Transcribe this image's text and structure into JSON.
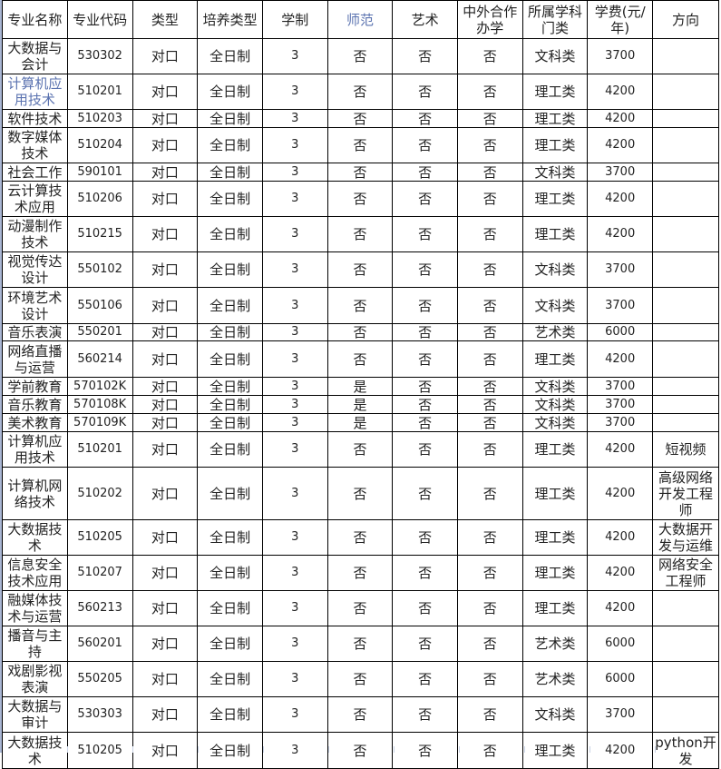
{
  "header": [
    "专业名称",
    "专业代码",
    "类型",
    "培养类型",
    "学制",
    "师范",
    "艺术",
    "中外合作办学",
    "所属学科门类",
    "学费(元/年)",
    "方向"
  ],
  "accent_color": "#5b73b0",
  "rows": [
    [
      "大数据与会计",
      "530302",
      "对口",
      "全日制",
      "3",
      "否",
      "否",
      "否",
      "文科类",
      "3700",
      ""
    ],
    [
      "计算机应用技术",
      "510201",
      "对口",
      "全日制",
      "3",
      "否",
      "否",
      "否",
      "理工类",
      "4200",
      ""
    ],
    [
      "软件技术",
      "510203",
      "对口",
      "全日制",
      "3",
      "否",
      "否",
      "否",
      "理工类",
      "4200",
      ""
    ],
    [
      "数字媒体技术",
      "510204",
      "对口",
      "全日制",
      "3",
      "否",
      "否",
      "否",
      "理工类",
      "4200",
      ""
    ],
    [
      "社会工作",
      "590101",
      "对口",
      "全日制",
      "3",
      "否",
      "否",
      "否",
      "文科类",
      "3700",
      ""
    ],
    [
      "云计算技术应用",
      "510206",
      "对口",
      "全日制",
      "3",
      "否",
      "否",
      "否",
      "理工类",
      "4200",
      ""
    ],
    [
      "动漫制作技术",
      "510215",
      "对口",
      "全日制",
      "3",
      "否",
      "否",
      "否",
      "理工类",
      "4200",
      ""
    ],
    [
      "视觉传达设计",
      "550102",
      "对口",
      "全日制",
      "3",
      "否",
      "否",
      "否",
      "文科类",
      "3700",
      ""
    ],
    [
      "环境艺术设计",
      "550106",
      "对口",
      "全日制",
      "3",
      "否",
      "否",
      "否",
      "文科类",
      "3700",
      ""
    ],
    [
      "音乐表演",
      "550201",
      "对口",
      "全日制",
      "3",
      "否",
      "否",
      "否",
      "艺术类",
      "6000",
      ""
    ],
    [
      "网络直播与运营",
      "560214",
      "对口",
      "全日制",
      "3",
      "否",
      "否",
      "否",
      "理工类",
      "4200",
      ""
    ],
    [
      "学前教育",
      "570102K",
      "对口",
      "全日制",
      "3",
      "是",
      "否",
      "否",
      "文科类",
      "3700",
      ""
    ],
    [
      "音乐教育",
      "570108K",
      "对口",
      "全日制",
      "3",
      "是",
      "否",
      "否",
      "文科类",
      "3700",
      ""
    ],
    [
      "美术教育",
      "570109K",
      "对口",
      "全日制",
      "3",
      "是",
      "否",
      "否",
      "文科类",
      "3700",
      ""
    ],
    [
      "计算机应用技术",
      "510201",
      "对口",
      "全日制",
      "3",
      "否",
      "否",
      "否",
      "理工类",
      "4200",
      "短视频"
    ],
    [
      "计算机网络技术",
      "510202",
      "对口",
      "全日制",
      "3",
      "否",
      "否",
      "否",
      "理工类",
      "4200",
      "高级网络开发工程师"
    ],
    [
      "大数据技术",
      "510205",
      "对口",
      "全日制",
      "3",
      "否",
      "否",
      "否",
      "理工类",
      "4200",
      "大数据开发与运维"
    ],
    [
      "信息安全技术应用",
      "510207",
      "对口",
      "全日制",
      "3",
      "否",
      "否",
      "否",
      "理工类",
      "4200",
      "网络安全工程师"
    ],
    [
      "融媒体技术与运营",
      "560213",
      "对口",
      "全日制",
      "3",
      "否",
      "否",
      "否",
      "理工类",
      "4200",
      ""
    ],
    [
      "播音与主持",
      "560201",
      "对口",
      "全日制",
      "3",
      "否",
      "否",
      "否",
      "艺术类",
      "6000",
      ""
    ],
    [
      "戏剧影视表演",
      "550205",
      "对口",
      "全日制",
      "3",
      "否",
      "否",
      "否",
      "艺术类",
      "6000",
      ""
    ],
    [
      "大数据与审计",
      "530303",
      "对口",
      "全日制",
      "3",
      "否",
      "否",
      "否",
      "文科类",
      "3700",
      ""
    ],
    [
      "大数据技术",
      "510205",
      "对口",
      "全日制",
      "3",
      "否",
      "否",
      "否",
      "理工类",
      "4200",
      "python开发"
    ]
  ]
}
